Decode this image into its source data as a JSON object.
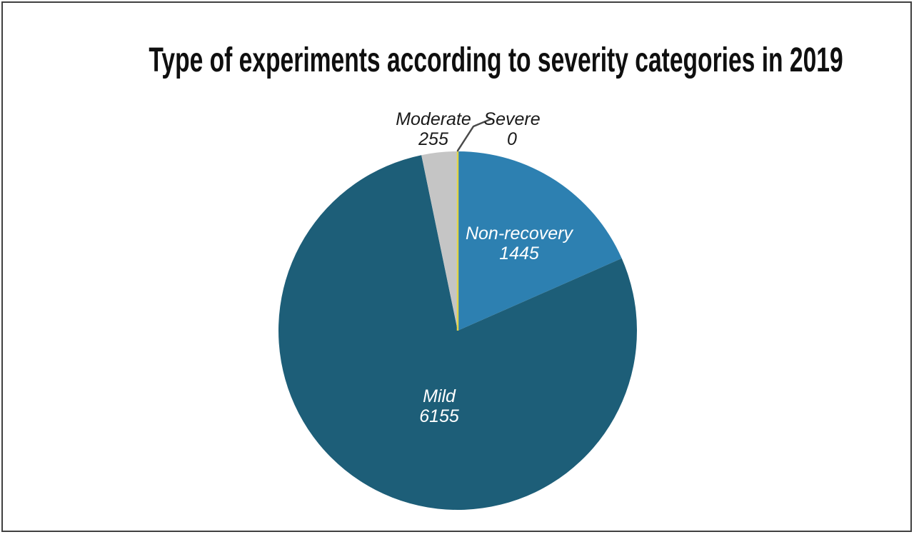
{
  "chart_data": {
    "type": "pie",
    "title": "Type of experiments according to severity categories in 2019",
    "start_angle_deg": 0,
    "direction": "clockwise",
    "legend": "none",
    "label_format": "category name above value",
    "slices": [
      {
        "label": "Non-recovery",
        "value": 1445,
        "color": "#2d80b1",
        "label_color": "#ffffff",
        "label_position": "inside"
      },
      {
        "label": "Mild",
        "value": 6155,
        "color": "#1d5e78",
        "label_color": "#ffffff",
        "label_position": "inside"
      },
      {
        "label": "Moderate",
        "value": 255,
        "color": "#c5c5c5",
        "label_color": "#1a1a1a",
        "label_position": "outside"
      },
      {
        "label": "Severe",
        "value": 0,
        "color": "#e2d44a",
        "label_color": "#1a1a1a",
        "label_position": "outside",
        "rendered_as": "radial-line",
        "leader_line": true
      }
    ],
    "leader_line_color": "#4a4a4a"
  }
}
